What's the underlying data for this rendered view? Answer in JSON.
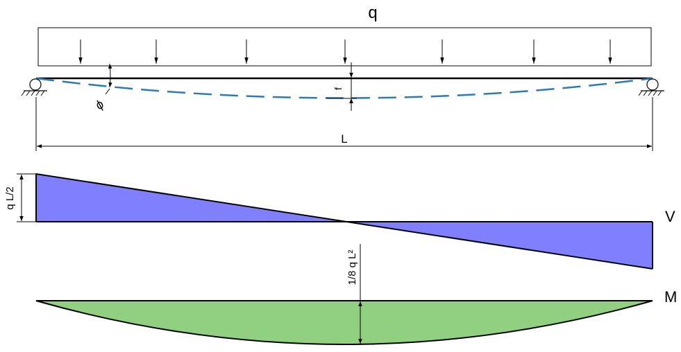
{
  "labels": {
    "load": "q",
    "deflection": "f",
    "rotation": "ϕ",
    "span": "L",
    "shear_max": "q L/2",
    "shear_diagram": "V",
    "moment_max": "1/8 q L²",
    "moment_diagram": "M"
  },
  "colors": {
    "deflected_shape": "#2a7ab8",
    "shear_fill": "#8080ff",
    "moment_fill": "#90d080",
    "line": "#000000"
  },
  "load_arrow_count": 7
}
